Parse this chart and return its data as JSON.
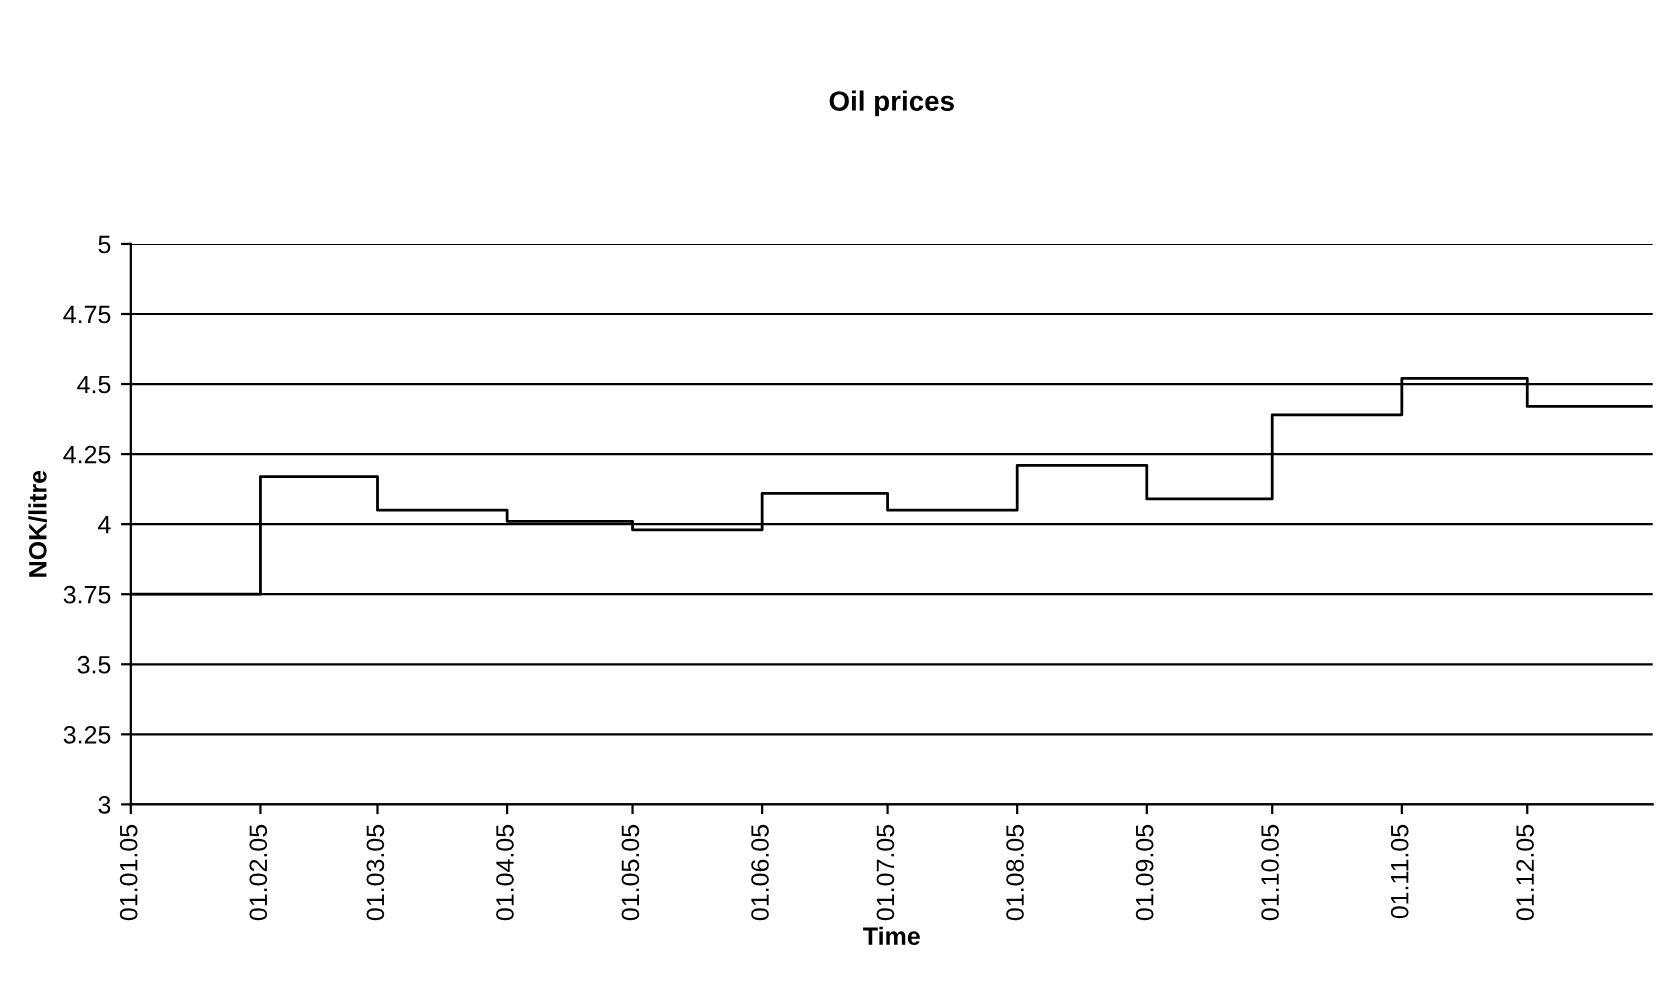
{
  "chart_data": {
    "type": "step",
    "title": "Oil prices",
    "xlabel": "Time",
    "ylabel": "NOK/litre",
    "x": [
      "2005-01-01",
      "2005-02-01",
      "2005-03-01",
      "2005-04-01",
      "2005-05-01",
      "2005-06-01",
      "2005-07-01",
      "2005-08-01",
      "2005-09-01",
      "2005-10-01",
      "2005-11-01",
      "2005-12-01",
      "2005-12-31"
    ],
    "series": [
      {
        "color": "#000000",
        "values": [
          3.75,
          4.17,
          4.05,
          4.01,
          3.98,
          4.11,
          4.05,
          4.21,
          4.09,
          4.39,
          4.52,
          4.42,
          4.42
        ]
      }
    ],
    "xlim": [
      "2005-01-01",
      "2005-12-31"
    ],
    "xticks": [
      {
        "value": "2005-01-01",
        "label": "01.01.05"
      },
      {
        "value": "2005-02-01",
        "label": "01.02.05"
      },
      {
        "value": "2005-03-01",
        "label": "01.03.05"
      },
      {
        "value": "2005-04-01",
        "label": "01.04.05"
      },
      {
        "value": "2005-05-01",
        "label": "01.05.05"
      },
      {
        "value": "2005-06-01",
        "label": "01.06.05"
      },
      {
        "value": "2005-07-01",
        "label": "01.07.05"
      },
      {
        "value": "2005-08-01",
        "label": "01.08.05"
      },
      {
        "value": "2005-09-01",
        "label": "01.09.05"
      },
      {
        "value": "2005-10-01",
        "label": "01.10.05"
      },
      {
        "value": "2005-11-01",
        "label": "01.11.05"
      },
      {
        "value": "2005-12-01",
        "label": "01.12.05"
      }
    ],
    "ylim": [
      3,
      5
    ],
    "yticks": [
      3,
      3.25,
      3.5,
      3.75,
      4,
      4.25,
      4.5,
      4.75,
      5
    ],
    "grid": "y",
    "marker": "none",
    "line_style": "solid"
  }
}
